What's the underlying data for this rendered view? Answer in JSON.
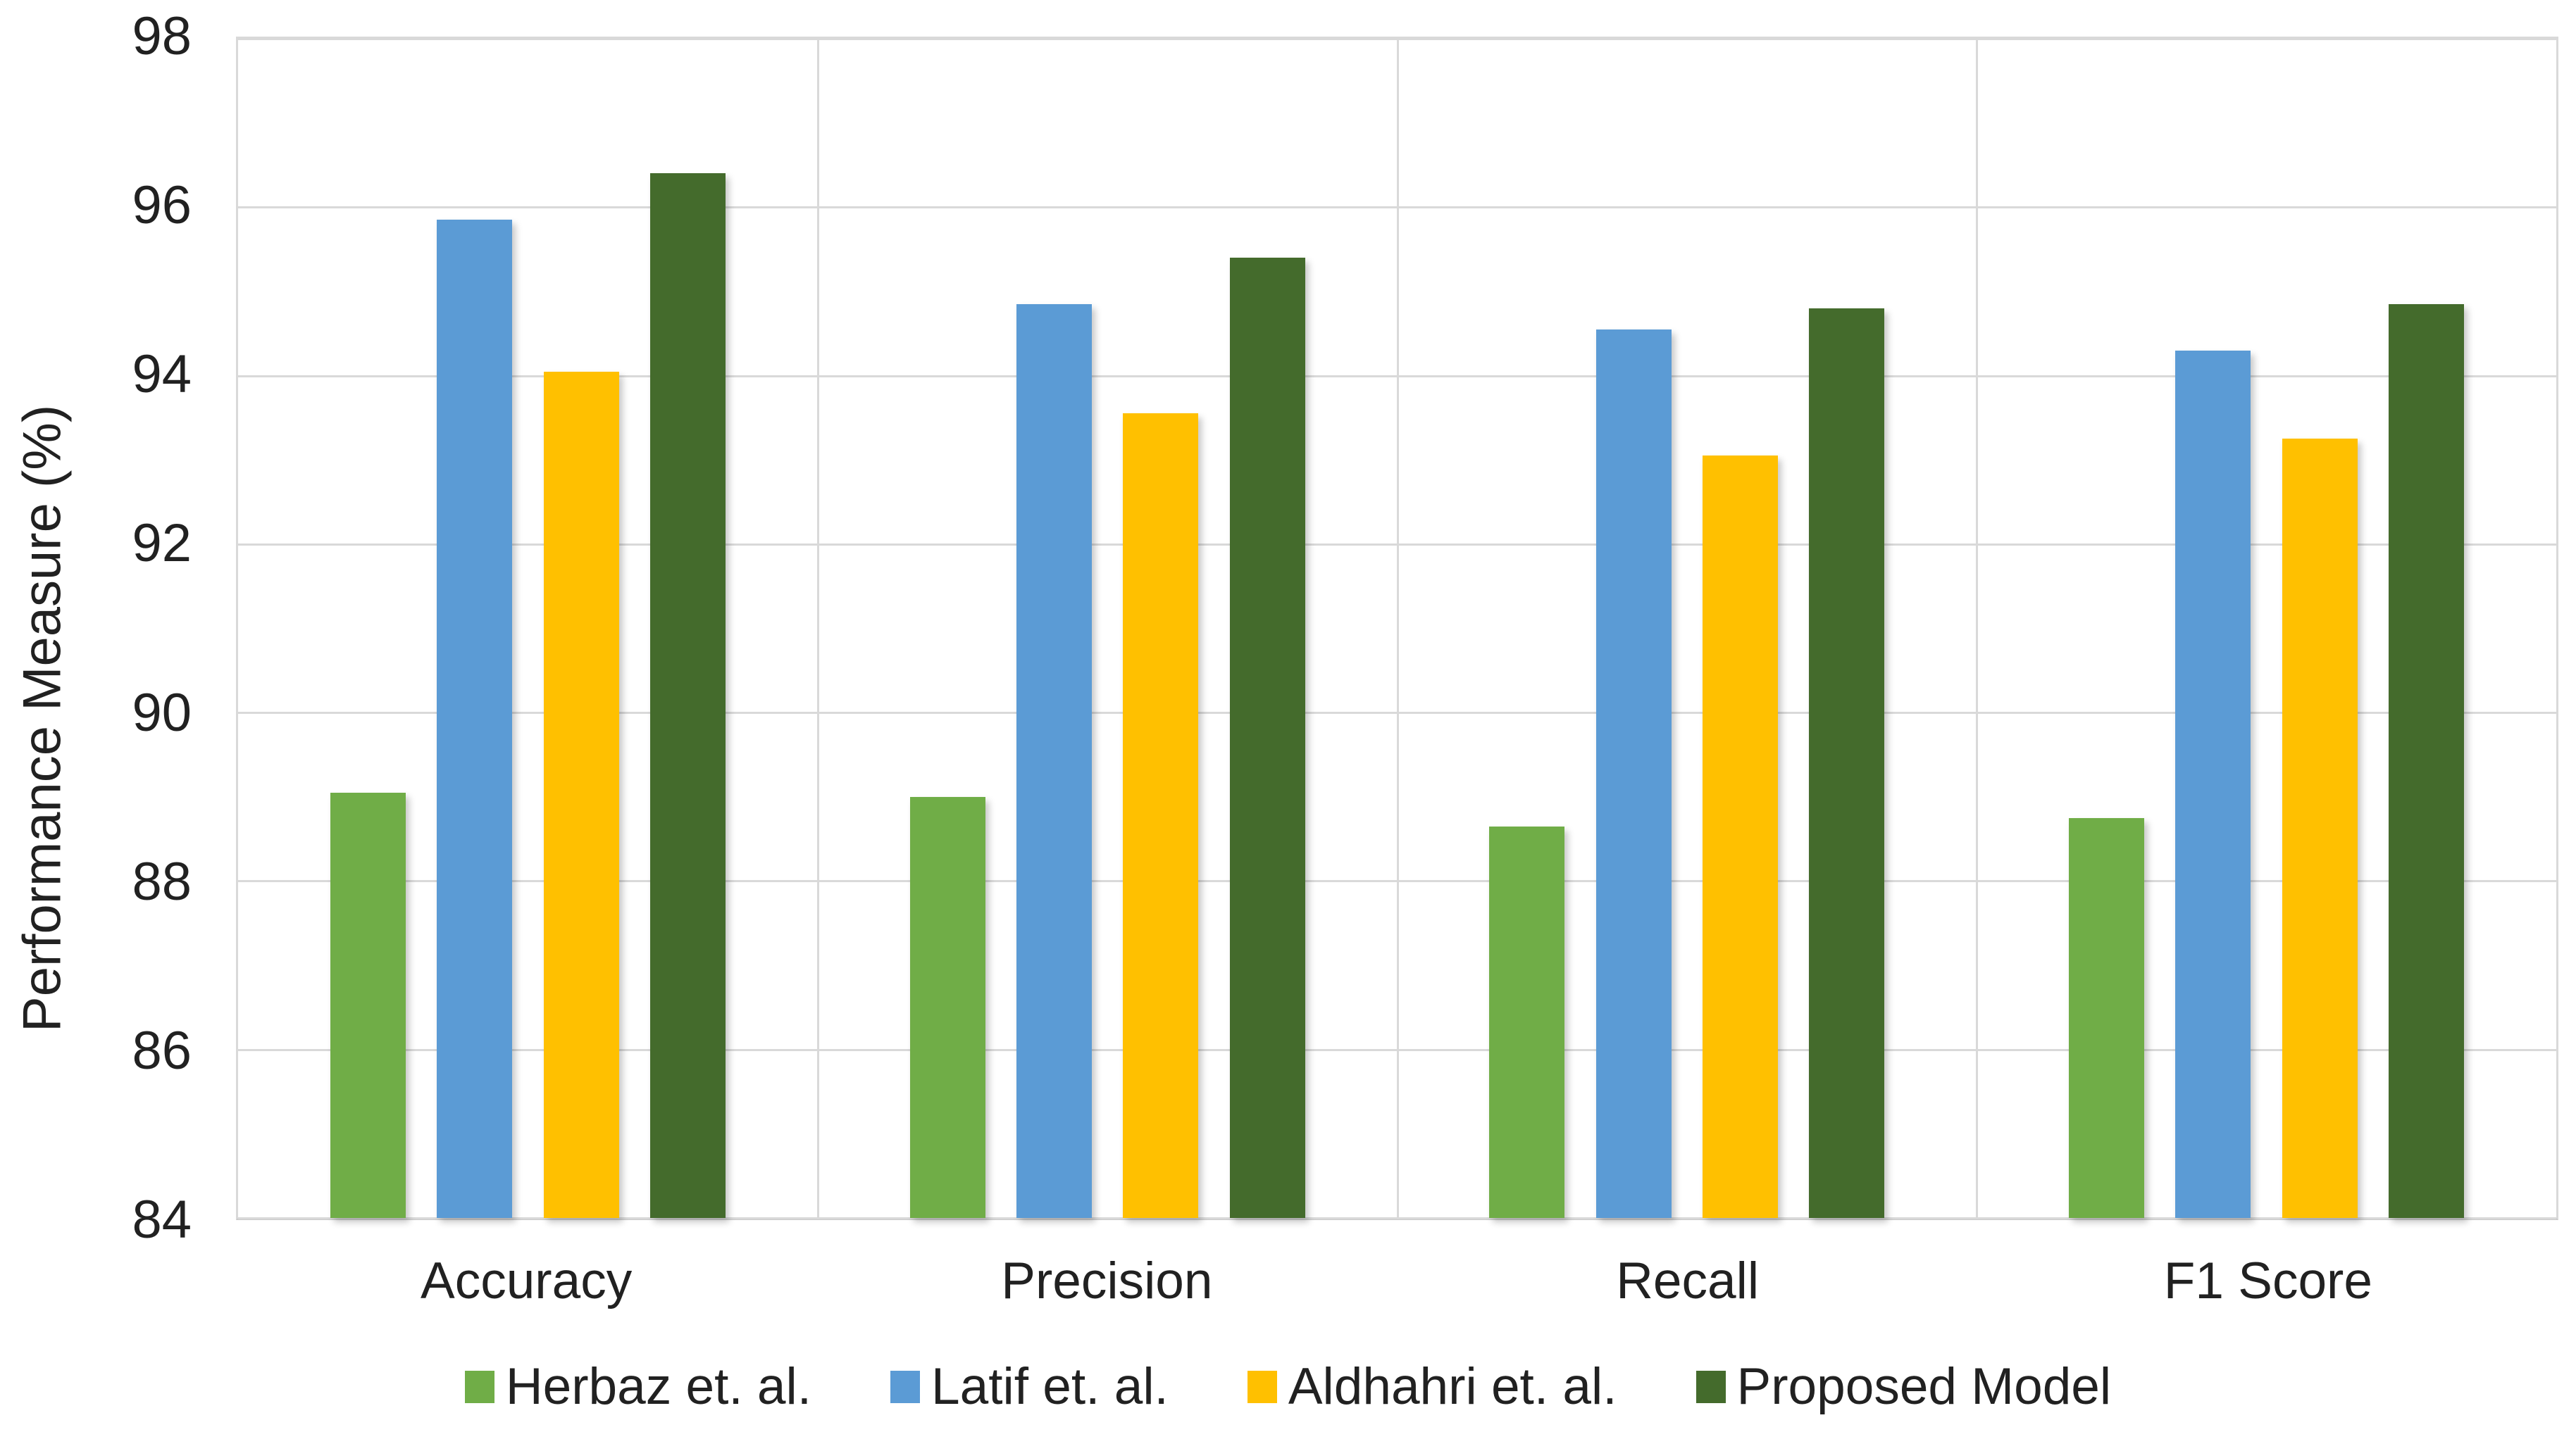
{
  "chart_data": {
    "type": "bar",
    "title": "",
    "xlabel": "",
    "ylabel": "Performance Measure (%)",
    "ylim": [
      84,
      98
    ],
    "ytick_step": 2,
    "yticks": [
      98,
      96,
      94,
      92,
      90,
      88,
      86,
      84
    ],
    "grid": true,
    "legend_position": "bottom",
    "categories": [
      "Accuracy",
      "Precision",
      "Recall",
      "F1 Score"
    ],
    "series": [
      {
        "name": "Herbaz et. al.",
        "color": "#70AD47",
        "values": [
          89.05,
          89.0,
          88.65,
          88.75
        ]
      },
      {
        "name": "Latif et. al.",
        "color": "#5B9BD5",
        "values": [
          95.85,
          94.85,
          94.55,
          94.3
        ]
      },
      {
        "name": "Aldhahri et. al.",
        "color": "#FFC000",
        "values": [
          94.05,
          93.55,
          93.05,
          93.25
        ]
      },
      {
        "name": "Proposed Model",
        "color": "#446B2C",
        "values": [
          96.4,
          95.4,
          94.8,
          94.85
        ]
      }
    ],
    "colors": {
      "gridline": "#D9D9D9",
      "axis_text": "#212121",
      "background": "#FFFFFF"
    }
  }
}
